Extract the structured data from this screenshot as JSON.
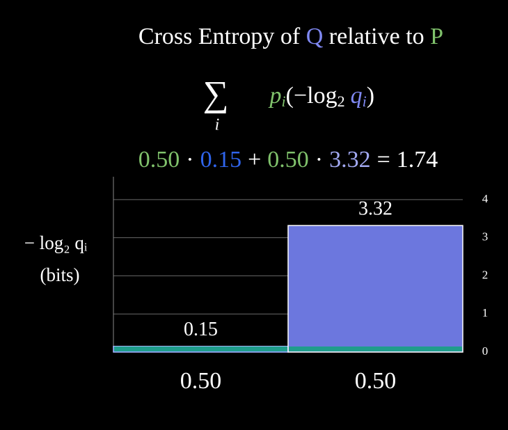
{
  "chart_data": {
    "type": "bar",
    "title_parts": [
      {
        "text": "Cross Entropy of ",
        "color": "#ffffff"
      },
      {
        "text": "Q",
        "color": "#7f88f2"
      },
      {
        "text": " relative to ",
        "color": "#ffffff"
      },
      {
        "text": "P",
        "color": "#80c26c"
      }
    ],
    "formula": {
      "sum": "∑",
      "index": "i",
      "p": "p",
      "sub": "i",
      "open": "(−log",
      "base": "2",
      "q": "q",
      "close": ")"
    },
    "equation": {
      "dot": "·",
      "plus": "+",
      "equals": "=",
      "result": 1.74
    },
    "ylabel": [
      "− log₂ qᵢ",
      "(bits)"
    ],
    "categories": [
      "0.50",
      "0.50"
    ],
    "widths": [
      0.5,
      0.5
    ],
    "values": [
      0.15,
      3.32
    ],
    "colors": [
      "#1c55d6",
      "#6c77de"
    ],
    "label_colors": [
      "#2f64ec",
      "#a2a9f2"
    ],
    "category_color": "#80c26c",
    "ylim": [
      0,
      4.6
    ],
    "yticks": [
      0,
      1,
      2,
      3,
      4
    ],
    "grid": true
  }
}
